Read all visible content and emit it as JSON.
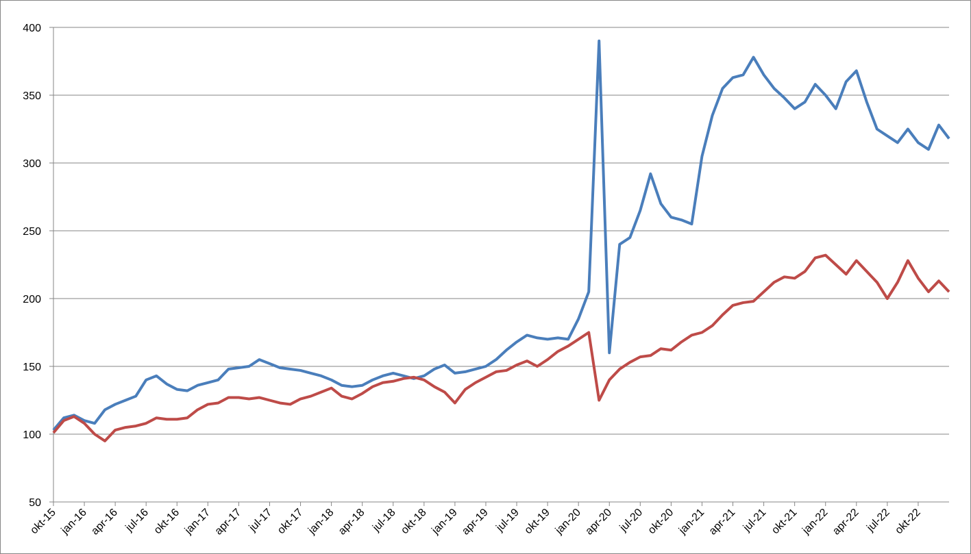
{
  "chart_data": {
    "type": "line",
    "categories": [
      "okt-15",
      null,
      null,
      "jan-16",
      null,
      null,
      "apr-16",
      null,
      null,
      "jul-16",
      null,
      null,
      "okt-16",
      null,
      null,
      "jan-17",
      null,
      null,
      "apr-17",
      null,
      null,
      "jul-17",
      null,
      null,
      "okt-17",
      null,
      null,
      "jan-18",
      null,
      null,
      "apr-18",
      null,
      null,
      "jul-18",
      null,
      null,
      "okt-18",
      null,
      null,
      "jan-19",
      null,
      null,
      "apr-19",
      null,
      null,
      "jul-19",
      null,
      null,
      "okt-19",
      null,
      null,
      "jan-20",
      null,
      null,
      "apr-20",
      null,
      null,
      "jul-20",
      null,
      null,
      "okt-20",
      null,
      null,
      "jan-21",
      null,
      null,
      "apr-21",
      null,
      null,
      "jul-21",
      null,
      null,
      "okt-21",
      null,
      null,
      "jan-22",
      null,
      null,
      "apr-22",
      null,
      null,
      "jul-22",
      null,
      null,
      "okt-22",
      null,
      null,
      null
    ],
    "series": [
      {
        "color": "#4a7ebb",
        "values": [
          103,
          112,
          114,
          110,
          108,
          118,
          122,
          125,
          128,
          140,
          143,
          137,
          133,
          132,
          136,
          138,
          140,
          148,
          149,
          150,
          155,
          152,
          149,
          148,
          147,
          145,
          143,
          140,
          136,
          135,
          136,
          140,
          143,
          145,
          143,
          141,
          143,
          148,
          151,
          145,
          146,
          148,
          150,
          155,
          162,
          168,
          173,
          171,
          170,
          171,
          170,
          185,
          205,
          390,
          160,
          240,
          245,
          265,
          292,
          270,
          260,
          258,
          255,
          305,
          335,
          355,
          363,
          365,
          378,
          365,
          355,
          348,
          340,
          345,
          358,
          350,
          340,
          360,
          368,
          345,
          325,
          320,
          315,
          325,
          315,
          310,
          328,
          318
        ]
      },
      {
        "color": "#be4b48",
        "values": [
          101,
          110,
          113,
          108,
          100,
          95,
          103,
          105,
          106,
          108,
          112,
          111,
          111,
          112,
          118,
          122,
          123,
          127,
          127,
          126,
          127,
          125,
          123,
          122,
          126,
          128,
          131,
          134,
          128,
          126,
          130,
          135,
          138,
          139,
          141,
          142,
          140,
          135,
          131,
          123,
          133,
          138,
          142,
          146,
          147,
          151,
          154,
          150,
          155,
          161,
          165,
          170,
          175,
          125,
          140,
          148,
          153,
          157,
          158,
          163,
          162,
          168,
          173,
          175,
          180,
          188,
          195,
          197,
          198,
          205,
          212,
          216,
          215,
          220,
          230,
          232,
          225,
          218,
          228,
          220,
          212,
          200,
          212,
          228,
          215,
          205,
          213,
          205
        ]
      }
    ],
    "ylim": [
      50,
      400
    ],
    "yticks": [
      50,
      100,
      150,
      200,
      250,
      300,
      350,
      400
    ],
    "grid": true
  }
}
